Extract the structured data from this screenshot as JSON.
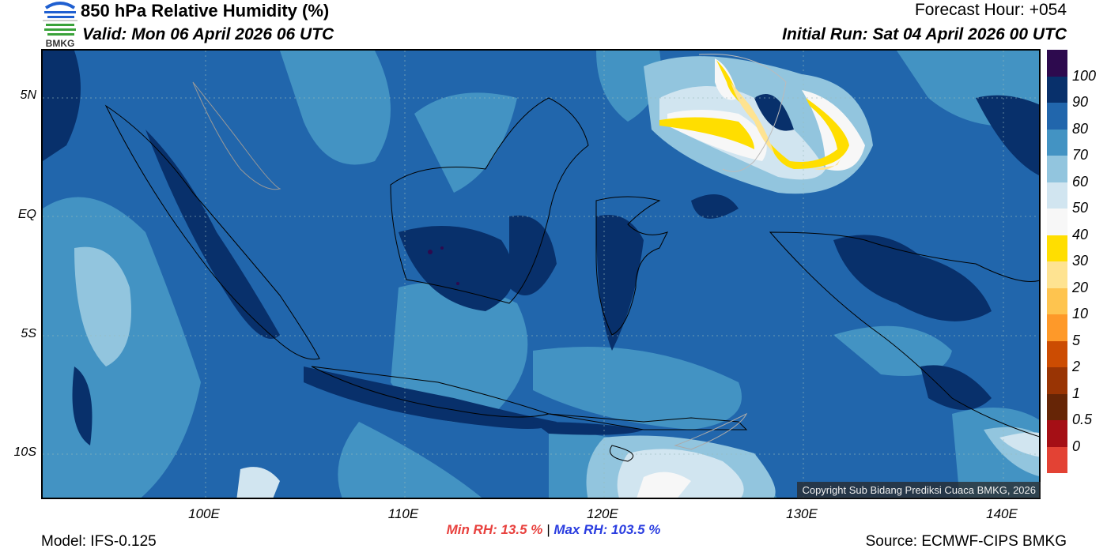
{
  "header": {
    "title": "850 hPa Relative Humidity (%)",
    "valid": "Valid: Mon 06 April 2026 06 UTC",
    "forecast_hour": "Forecast Hour: +054",
    "initial_run": "Initial Run: Sat 04 April 2026 00 UTC",
    "logo_text": "BMKG"
  },
  "map": {
    "lat_labels": [
      "5N",
      "EQ",
      "5S",
      "10S"
    ],
    "lon_labels": [
      "100E",
      "110E",
      "120E",
      "130E",
      "140E"
    ],
    "copyright": "Copyright Sub Bidang Prediksi Cuaca BMKG, 2026"
  },
  "colorbar": {
    "colors": [
      "#2d0a4e",
      "#08306b",
      "#2166ac",
      "#4393c3",
      "#92c5de",
      "#d1e5f0",
      "#f7f7f7",
      "#ffde00",
      "#fee391",
      "#fec44f",
      "#fe9929",
      "#cc4c02",
      "#993404",
      "#662506",
      "#a50f15",
      "#e34234"
    ],
    "labels": [
      "100",
      "90",
      "80",
      "70",
      "60",
      "50",
      "40",
      "30",
      "20",
      "10",
      "5",
      "2",
      "1",
      "0.5",
      "0"
    ]
  },
  "footer": {
    "min_rh": "Min RH:  13.5 %",
    "separator": "|",
    "max_rh": "Max RH: 103.5 %",
    "model": "Model: IFS-0.125",
    "source": "Source: ECMWF-CIPS BMKG"
  }
}
